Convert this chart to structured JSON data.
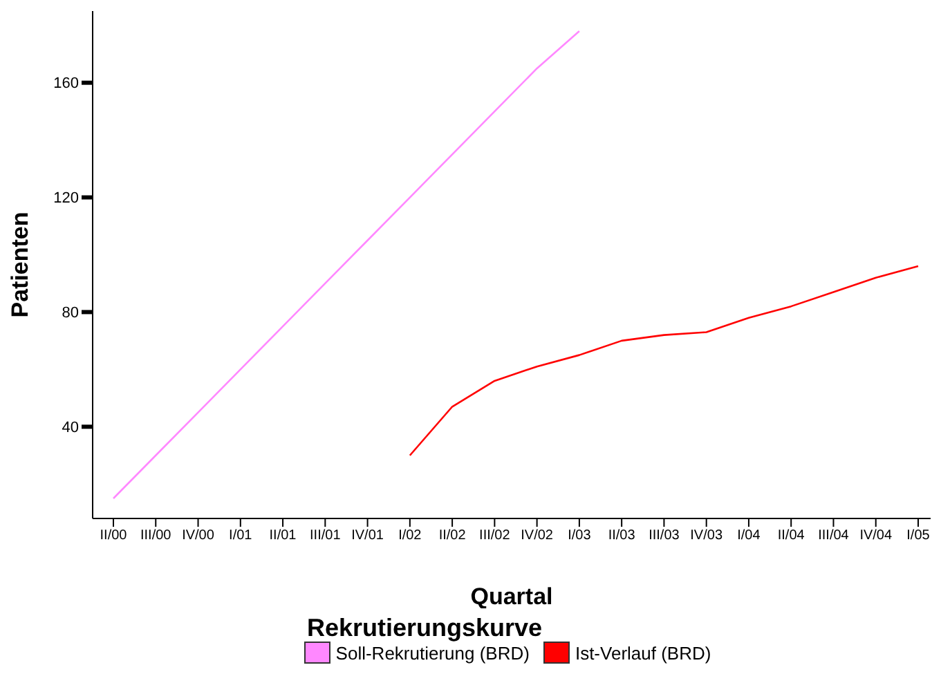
{
  "chart_data": {
    "type": "line",
    "xlabel": "Quartal",
    "ylabel": "Patienten",
    "legend_title": "Rekrutierungskurve",
    "legend": "bottom",
    "marker": "none",
    "line_style": "solid",
    "categories": [
      "II/00",
      "III/00",
      "IV/00",
      "I/01",
      "II/01",
      "III/01",
      "IV/01",
      "I/02",
      "II/02",
      "III/02",
      "IV/02",
      "I/03",
      "II/03",
      "III/03",
      "IV/03",
      "I/04",
      "II/04",
      "III/04",
      "IV/04",
      "I/05"
    ],
    "ylim": [
      8,
      185
    ],
    "yticks": [
      40,
      80,
      120,
      160
    ],
    "series": [
      {
        "name": "Soll-Rekrutierung (BRD)",
        "color": "#ff88ff",
        "values": [
          15,
          30,
          45,
          60,
          75,
          90,
          105,
          120,
          135,
          150,
          165,
          178,
          null,
          null,
          null,
          null,
          null,
          null,
          null,
          null
        ]
      },
      {
        "name": "Ist-Verlauf (BRD)",
        "color": "#ff0000",
        "values": [
          null,
          null,
          null,
          null,
          null,
          null,
          null,
          30,
          47,
          56,
          61,
          65,
          70,
          72,
          73,
          78,
          82,
          87,
          92,
          96
        ]
      }
    ]
  }
}
